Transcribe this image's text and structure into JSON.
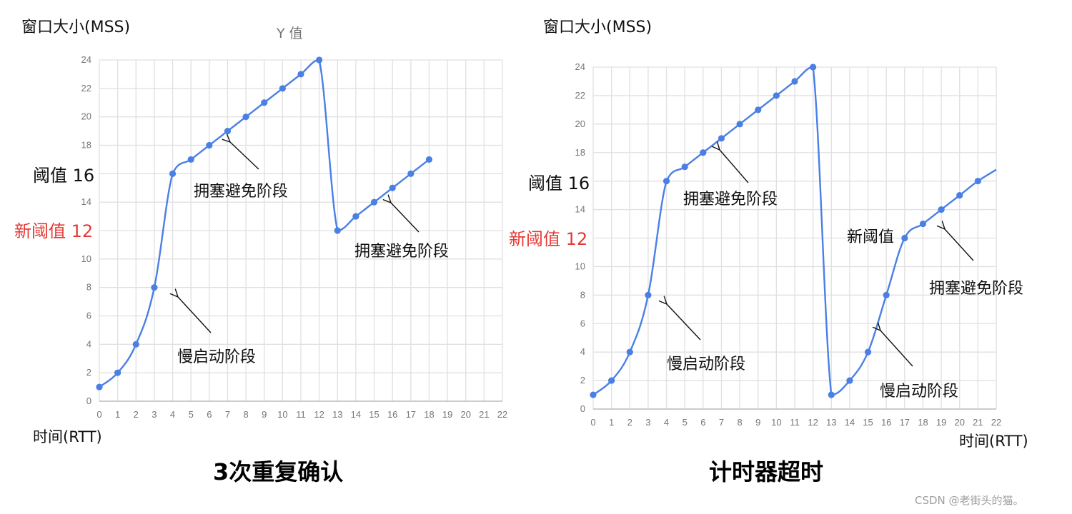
{
  "left_chart": {
    "y_axis_title": "窗口大小(MSS)",
    "series_title": "Y 值",
    "threshold_label": "阈值 16",
    "new_threshold_label": "新阈值 12",
    "annotations": [
      "拥塞避免阶段",
      "慢启动阶段",
      "拥塞避免阶段"
    ],
    "x_axis_title": "时间(RTT)",
    "caption": "3次重复确认"
  },
  "right_chart": {
    "y_axis_title": "窗口大小(MSS)",
    "threshold_label": "阈值 16",
    "new_threshold_label": "新阈值 12",
    "new_threshold_inline": "新阈值",
    "annotations": [
      "拥塞避免阶段",
      "慢启动阶段",
      "拥塞避免阶段",
      "慢启动阶段"
    ],
    "x_axis_title": "时间(RTT)",
    "caption": "计时器超时"
  },
  "watermark": "CSDN @老街头的猫。",
  "colors": {
    "line": "#4a7fe6",
    "grid": "#e0e0e0",
    "new_threshold": "#e53935"
  },
  "chart_data": [
    {
      "type": "line",
      "title": "3次重复确认",
      "series_name": "Y 值",
      "xlabel": "时间(RTT)",
      "ylabel": "窗口大小(MSS)",
      "x": [
        0,
        1,
        2,
        3,
        4,
        5,
        6,
        7,
        8,
        9,
        10,
        11,
        12,
        13,
        14,
        15,
        16,
        17,
        18
      ],
      "values": [
        1,
        2,
        4,
        8,
        16,
        17,
        18,
        19,
        20,
        21,
        22,
        23,
        24,
        12,
        13,
        14,
        15,
        16,
        17
      ],
      "xlim": [
        0,
        22
      ],
      "ylim": [
        0,
        24
      ],
      "x_ticks": [
        0,
        1,
        2,
        3,
        4,
        5,
        6,
        7,
        8,
        9,
        10,
        11,
        12,
        13,
        14,
        15,
        16,
        17,
        18,
        19,
        20,
        21,
        22
      ],
      "y_ticks": [
        0,
        2,
        4,
        6,
        8,
        10,
        12,
        14,
        16,
        18,
        20,
        22,
        24
      ],
      "grid": true,
      "annotations": [
        {
          "text": "阈值 16",
          "y": 16
        },
        {
          "text": "新阈值 12",
          "y": 12,
          "color": "#e53935"
        },
        {
          "text": "拥塞避免阶段",
          "points_to_x": 7
        },
        {
          "text": "慢启动阶段",
          "points_to_x": 4
        },
        {
          "text": "拥塞避免阶段",
          "points_to_x": 16
        }
      ]
    },
    {
      "type": "line",
      "title": "计时器超时",
      "xlabel": "时间(RTT)",
      "ylabel": "窗口大小(MSS)",
      "x": [
        0,
        1,
        2,
        3,
        4,
        5,
        6,
        7,
        8,
        9,
        10,
        11,
        12,
        13,
        14,
        15,
        16,
        17,
        18,
        19,
        20,
        21,
        22
      ],
      "values": [
        1,
        2,
        4,
        8,
        16,
        17,
        18,
        19,
        20,
        21,
        22,
        23,
        24,
        1,
        2,
        4,
        8,
        12,
        13,
        14,
        15,
        16,
        16.8
      ],
      "xlim": [
        0,
        22
      ],
      "ylim": [
        0,
        24
      ],
      "x_ticks": [
        0,
        1,
        2,
        3,
        4,
        5,
        6,
        7,
        8,
        9,
        10,
        11,
        12,
        13,
        14,
        15,
        16,
        17,
        18,
        19,
        20,
        21,
        22
      ],
      "y_ticks": [
        0,
        2,
        4,
        6,
        8,
        10,
        12,
        14,
        16,
        18,
        20,
        22,
        24
      ],
      "grid": true,
      "annotations": [
        {
          "text": "阈值 16",
          "y": 16
        },
        {
          "text": "新阈值 12",
          "y": 12,
          "color": "#e53935"
        },
        {
          "text": "拥塞避免阶段",
          "points_to_x": 7
        },
        {
          "text": "慢启动阶段",
          "points_to_x": 4
        },
        {
          "text": "新阈值",
          "points_to_x": 17
        },
        {
          "text": "拥塞避免阶段",
          "points_to_x": 19
        },
        {
          "text": "慢启动阶段",
          "points_to_x": 16
        }
      ]
    }
  ]
}
